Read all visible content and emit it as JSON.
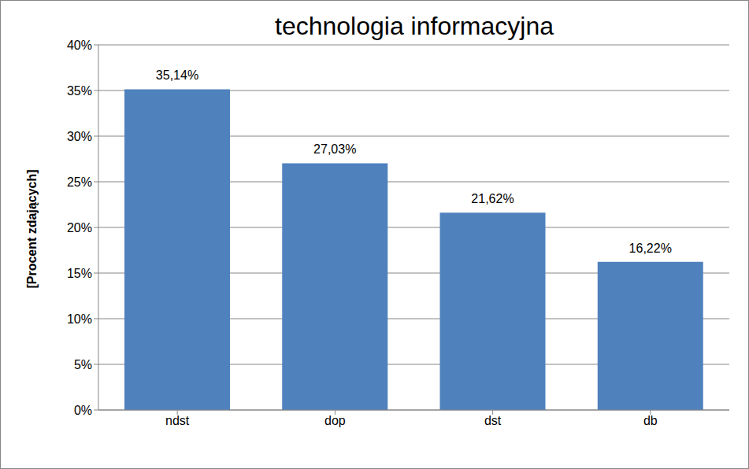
{
  "chart_data": {
    "type": "bar",
    "title": "technologia informacyjna",
    "y_label": "[Procent zdających]",
    "categories": [
      "ndst",
      "dop",
      "dst",
      "db"
    ],
    "values": [
      35.14,
      27.03,
      21.62,
      16.22
    ],
    "value_labels": [
      "35,14%",
      "27,03%",
      "21,62%",
      "16,22%"
    ],
    "data_labels": true,
    "color": "#4f81bd",
    "ylim": [
      0,
      40
    ],
    "yticks": [
      {
        "value": 0,
        "label": "0%"
      },
      {
        "value": 5,
        "label": "5%"
      },
      {
        "value": 10,
        "label": "10%"
      },
      {
        "value": 15,
        "label": "15%"
      },
      {
        "value": 20,
        "label": "20%"
      },
      {
        "value": 25,
        "label": "25%"
      },
      {
        "value": 30,
        "label": "30%"
      },
      {
        "value": 35,
        "label": "35%"
      },
      {
        "value": 40,
        "label": "40%"
      }
    ],
    "grid": true
  }
}
